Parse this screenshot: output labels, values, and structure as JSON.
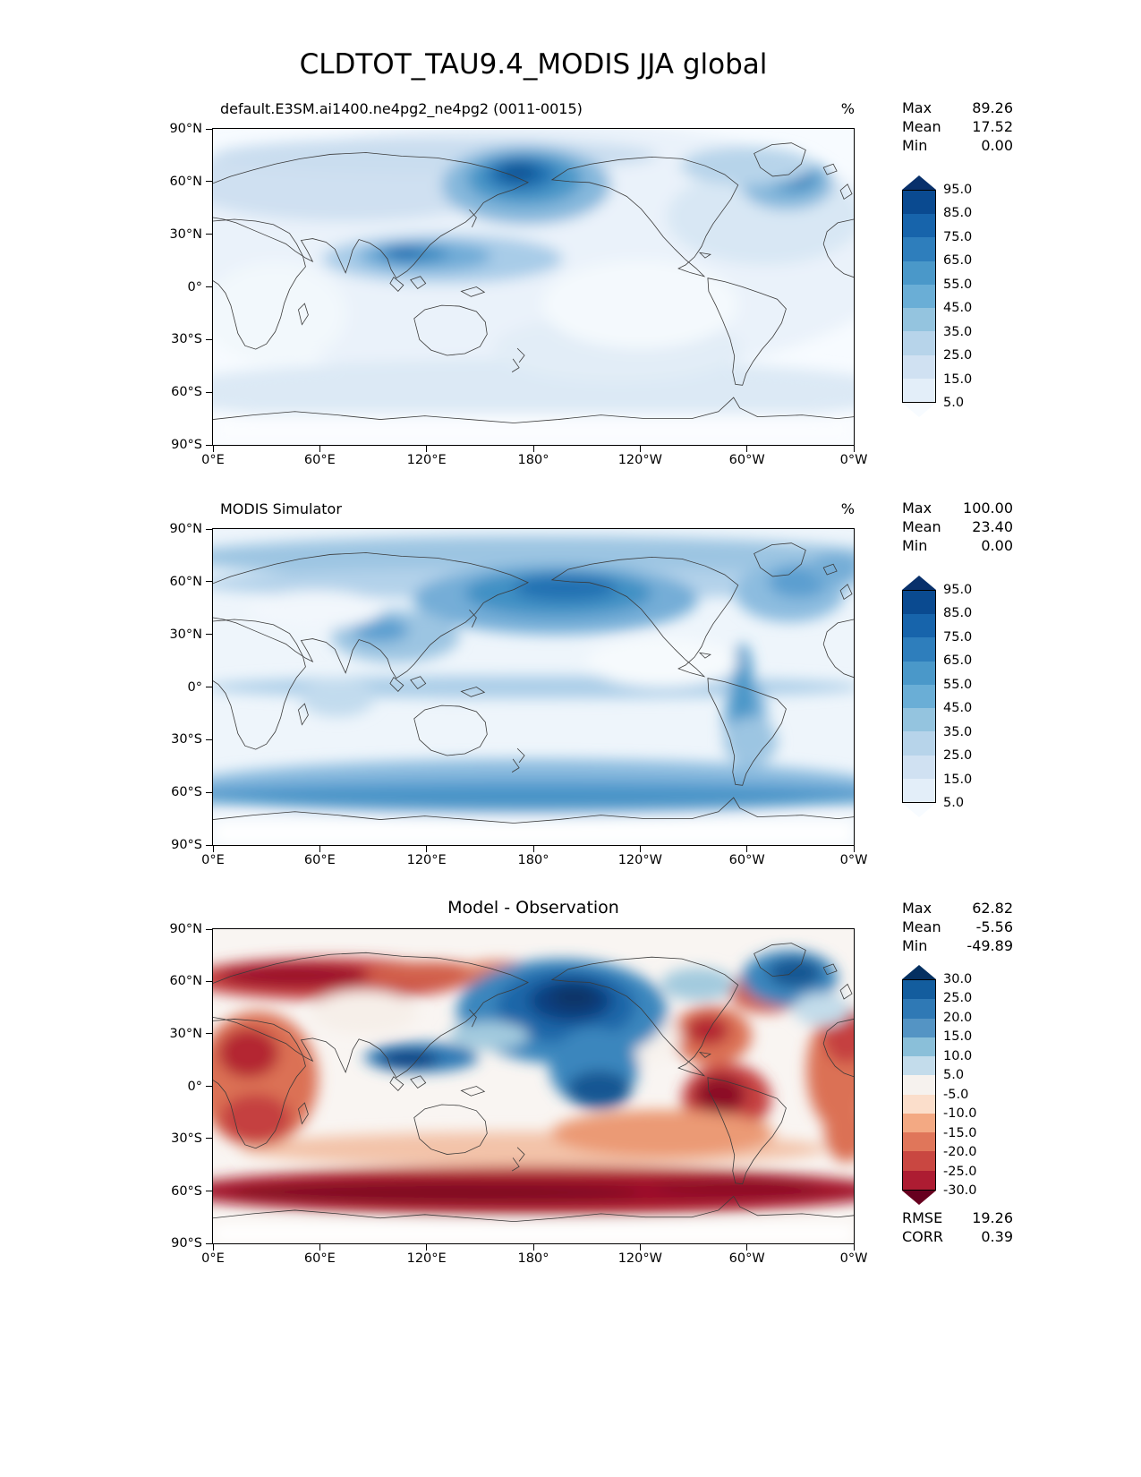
{
  "title": "CLDTOT_TAU9.4_MODIS JJA global",
  "axis": {
    "y_ticks": [
      "90°N",
      "60°N",
      "30°N",
      "0°",
      "30°S",
      "60°S",
      "90°S"
    ],
    "x_ticks": [
      "0°E",
      "60°E",
      "120°E",
      "180°",
      "120°W",
      "60°W",
      "0°W"
    ]
  },
  "panels": [
    {
      "key": "model",
      "title": "default.E3SM.ai1400.ne4pg2_ne4pg2 (0011-0015)",
      "units": "%",
      "stats": [
        {
          "label": "Max",
          "value": "89.26"
        },
        {
          "label": "Mean",
          "value": "17.52"
        },
        {
          "label": "Min",
          "value": "0.00"
        }
      ],
      "colorbar": {
        "over_color": "#08306b",
        "under_color": "#f7fbff",
        "tick_labels": [
          "95.0",
          "85.0",
          "75.0",
          "65.0",
          "55.0",
          "45.0",
          "35.0",
          "25.0",
          "15.0",
          "5.0"
        ],
        "band_colors": [
          "#0a4a90",
          "#1764ab",
          "#2e7ebc",
          "#4a98c9",
          "#6aaed6",
          "#94c4df",
          "#b7d4ea",
          "#d0e1f2",
          "#e3eef9"
        ]
      }
    },
    {
      "key": "obs",
      "title": "MODIS Simulator",
      "units": "%",
      "stats": [
        {
          "label": "Max",
          "value": "100.00"
        },
        {
          "label": "Mean",
          "value": "23.40"
        },
        {
          "label": "Min",
          "value": "0.00"
        }
      ],
      "colorbar": {
        "over_color": "#08306b",
        "under_color": "#f7fbff",
        "tick_labels": [
          "95.0",
          "85.0",
          "75.0",
          "65.0",
          "55.0",
          "45.0",
          "35.0",
          "25.0",
          "15.0",
          "5.0"
        ],
        "band_colors": [
          "#0a4a90",
          "#1764ab",
          "#2e7ebc",
          "#4a98c9",
          "#6aaed6",
          "#94c4df",
          "#b7d4ea",
          "#d0e1f2",
          "#e3eef9"
        ]
      }
    },
    {
      "key": "diff",
      "title": "Model - Observation",
      "stats": [
        {
          "label": "Max",
          "value": "62.82"
        },
        {
          "label": "Mean",
          "value": "-5.56"
        },
        {
          "label": "Min",
          "value": "-49.89"
        }
      ],
      "extra_stats": [
        {
          "label": "RMSE",
          "value": "19.26"
        },
        {
          "label": "CORR",
          "value": "0.39"
        }
      ],
      "colorbar": {
        "over_color": "#053061",
        "under_color": "#67001f",
        "tick_labels": [
          "30.0",
          "25.0",
          "20.0",
          "15.0",
          "10.0",
          "5.0",
          "-5.0",
          "-10.0",
          "-15.0",
          "-20.0",
          "-25.0",
          "-30.0"
        ],
        "band_colors": [
          "#135d9e",
          "#2f79b5",
          "#5494c4",
          "#8abfd9",
          "#c3dceb",
          "#f6f2ee",
          "#fbdecb",
          "#f3a983",
          "#e0765a",
          "#c94741",
          "#ad1c32"
        ]
      }
    }
  ],
  "chart_data": [
    {
      "type": "heatmap",
      "subtype": "filled_contour_global_map",
      "title": "default.E3SM.ai1400.ne4pg2_ne4pg2 (0011-0015)",
      "variable": "CLDTOT_TAU9.4_MODIS",
      "season": "JJA",
      "region": "global",
      "units": "%",
      "colormap": "Blues (white to dark blue), triangular over/under extensions",
      "contour_levels": [
        5,
        15,
        25,
        35,
        45,
        55,
        65,
        75,
        85,
        95
      ],
      "stats": {
        "max": 89.26,
        "mean": 17.52,
        "min": 0.0
      },
      "x_ticks": [
        "0°E",
        "60°E",
        "120°E",
        "180°",
        "120°W",
        "60°W",
        "0°W"
      ],
      "y_ticks": [
        "90°N",
        "60°N",
        "30°N",
        "0°",
        "30°S",
        "60°S",
        "90°S"
      ],
      "notable_features": [
        "strong maximum (>85%) over North Pacific around 50-70°N, 150°E-170°W",
        "secondary maximum band over Southeast Asia / NW tropical Pacific near 10-30°N",
        "high values near 55-65°N in the North Atlantic",
        "generally low values (<25%) over subtropics, Africa and Southern Hemisphere oceans"
      ]
    },
    {
      "type": "heatmap",
      "subtype": "filled_contour_global_map",
      "title": "MODIS Simulator",
      "variable": "CLDTOT_TAU9.4_MODIS",
      "season": "JJA",
      "region": "global",
      "units": "%",
      "colormap": "Blues (white to dark blue), triangular over/under extensions",
      "contour_levels": [
        5,
        15,
        25,
        35,
        45,
        55,
        65,
        75,
        85,
        95
      ],
      "stats": {
        "max": 100.0,
        "mean": 23.4,
        "min": 0.0
      },
      "x_ticks": [
        "0°E",
        "60°E",
        "120°E",
        "180°",
        "120°W",
        "60°W",
        "0°W"
      ],
      "y_ticks": [
        "90°N",
        "60°N",
        "30°N",
        "0°",
        "30°S",
        "60°S",
        "90°S"
      ],
      "notable_features": [
        "broad cloudy band (45-75%) across the North Pacific 40-60°N",
        "persistent Southern Ocean cloud band 45-65°S",
        "coastal stratocumulus along the west coast of South America",
        "low values over the Sahara and subtropical ocean basins",
        "no data / white below about 65°S"
      ]
    },
    {
      "type": "heatmap",
      "subtype": "filled_contour_global_map_difference",
      "title": "Model - Observation",
      "variable": "CLDTOT_TAU9.4_MODIS difference",
      "season": "JJA",
      "region": "global",
      "units": "%",
      "colormap": "RdBu (blue positive, red negative), triangular over/under extensions",
      "contour_levels": [
        -30,
        -25,
        -20,
        -15,
        -10,
        -5,
        5,
        10,
        15,
        20,
        25,
        30
      ],
      "stats": {
        "max": 62.82,
        "mean": -5.56,
        "min": -49.89,
        "rmse": 19.26,
        "corr": 0.39
      },
      "x_ticks": [
        "0°E",
        "60°E",
        "120°E",
        "180°",
        "120°W",
        "60°W",
        "0°W"
      ],
      "y_ticks": [
        "90°N",
        "60°N",
        "30°N",
        "0°",
        "30°S",
        "60°S",
        "90°S"
      ],
      "notable_features": [
        "strong negative bias (< -30%) in a dark red band along the Southern Ocean ~55-65°S",
        "negative bias across northern Eurasia high latitudes",
        "large positive bias (> 30%) over the central North Pacific extending toward the equator",
        "positive bias over Southeast Asia and near Greenland / North Atlantic",
        "negative bias over Africa, the tropical Atlantic and tropical South America / east Pacific"
      ]
    }
  ]
}
